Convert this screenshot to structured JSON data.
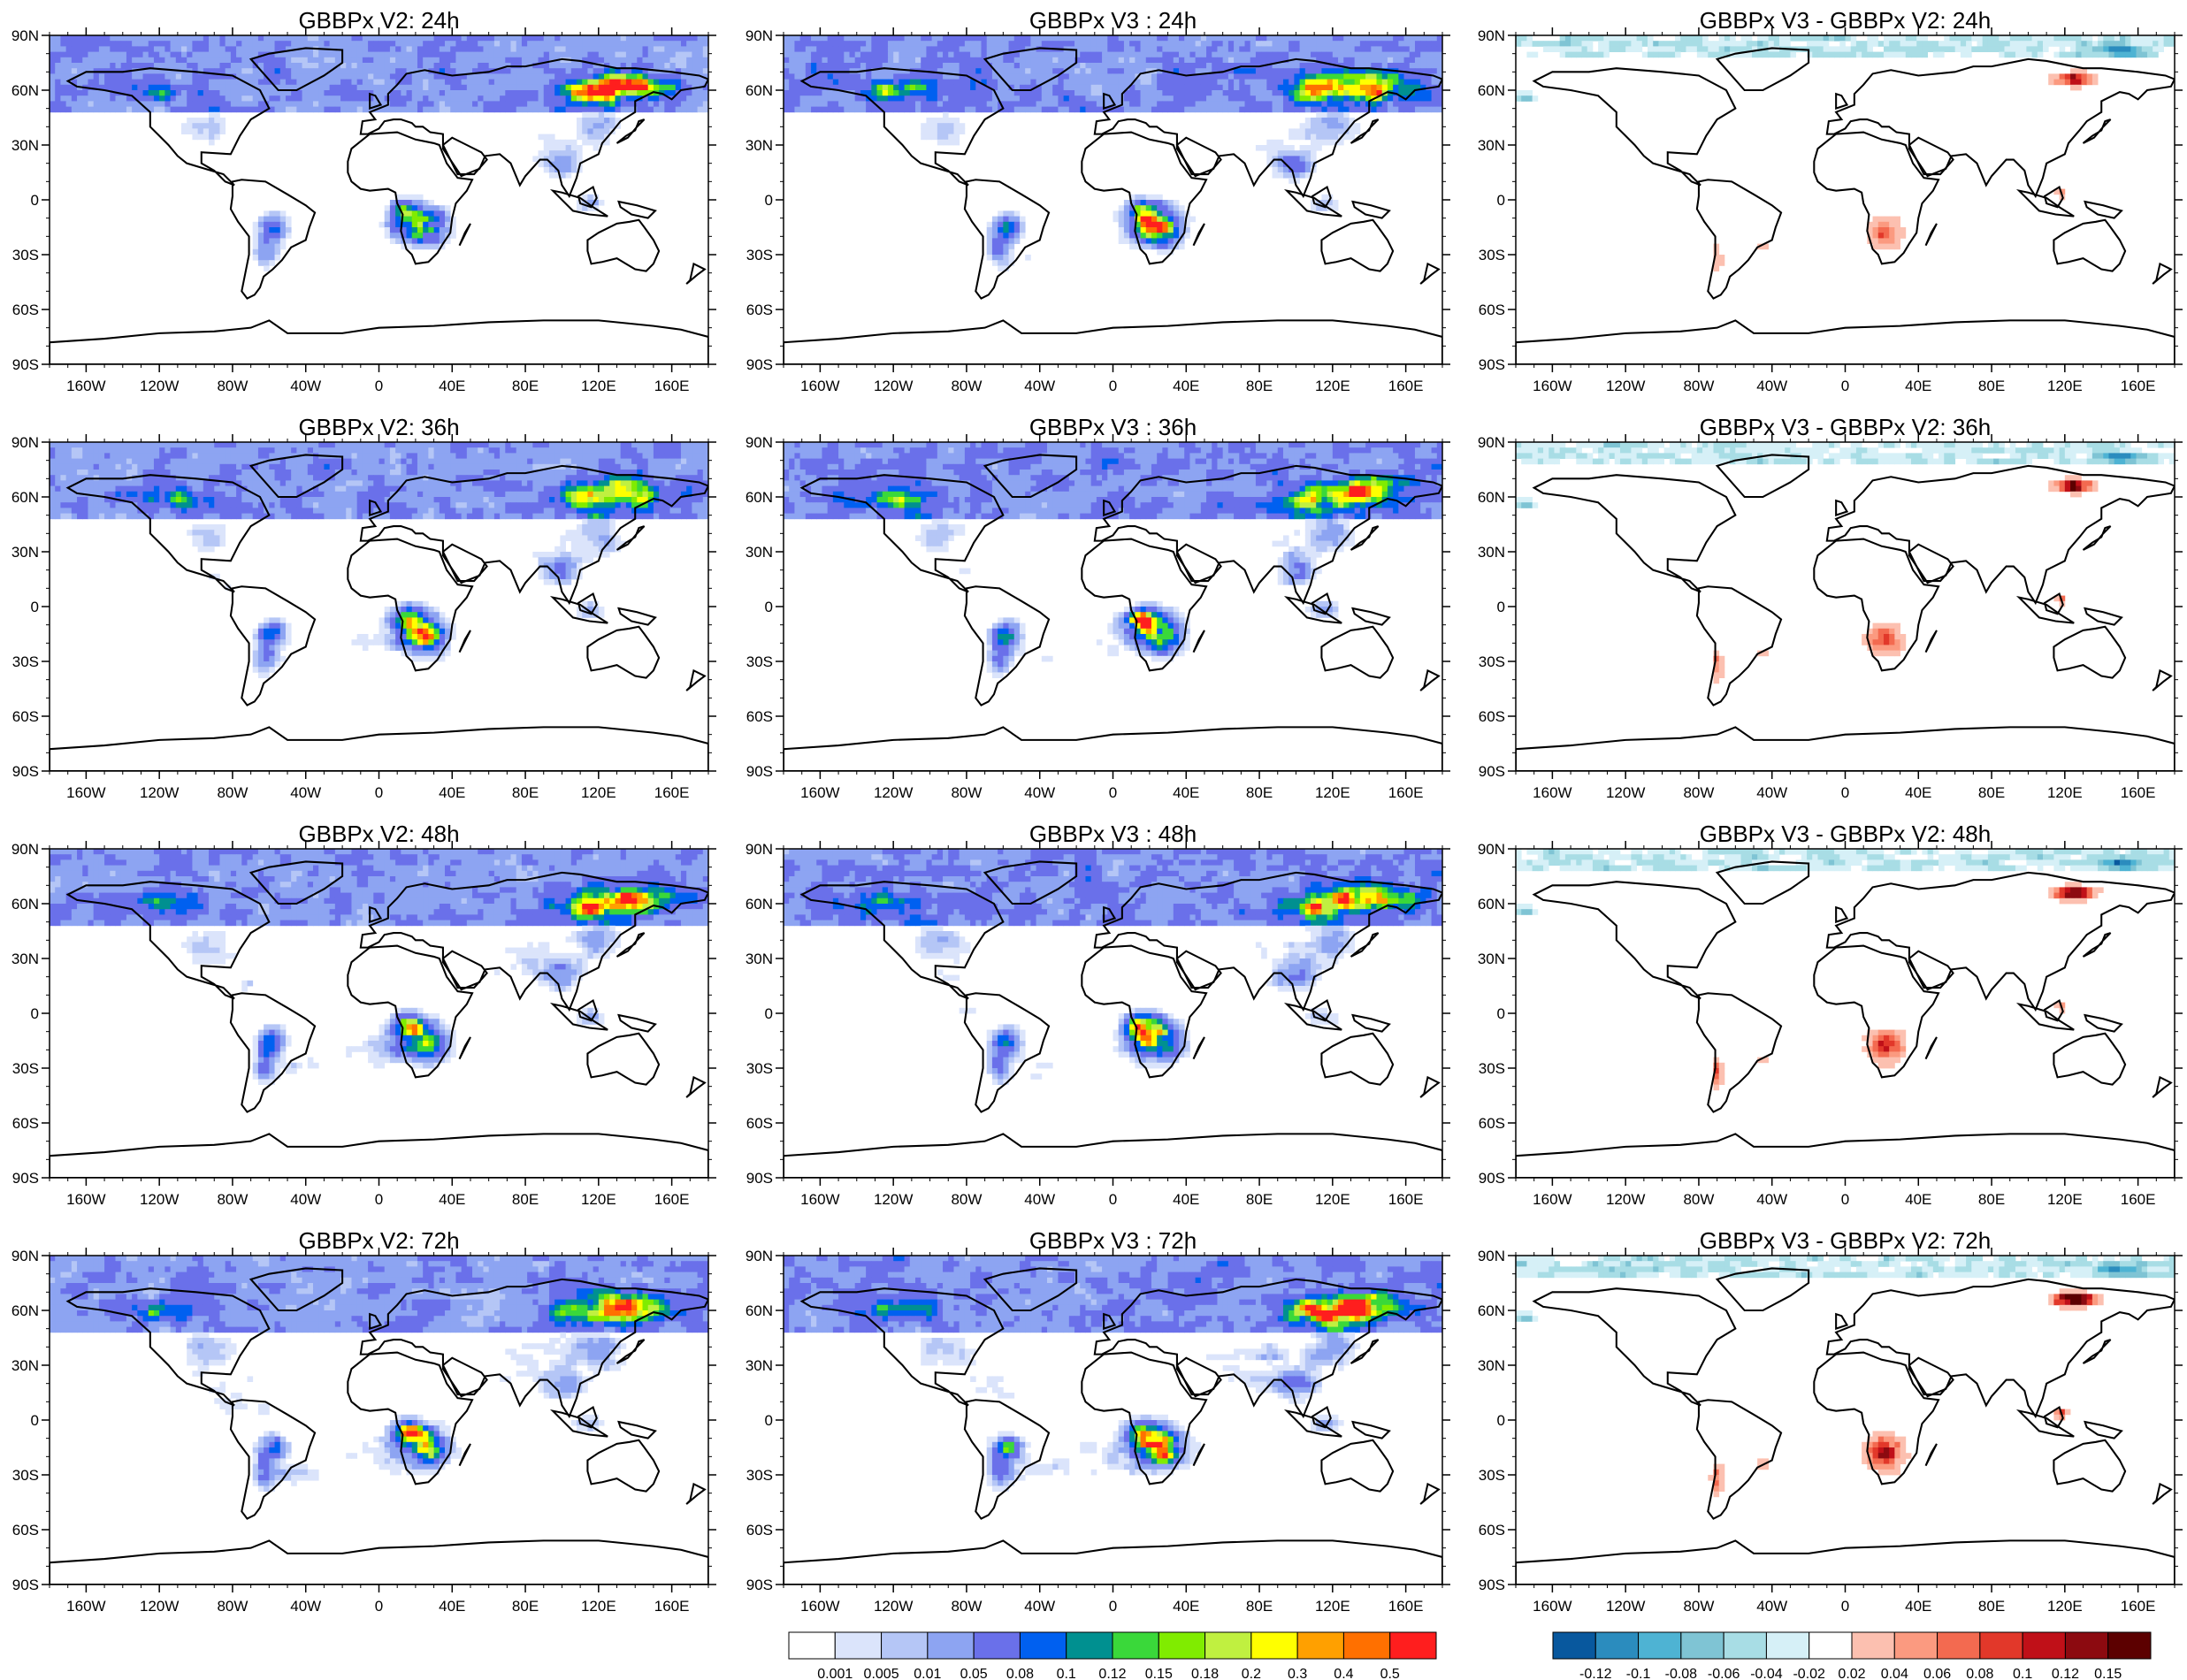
{
  "panels": [
    {
      "title": "GBBPx V2: 24h",
      "kind": "abs",
      "hour": 24
    },
    {
      "title": "GBBPx V3 : 24h",
      "kind": "abs",
      "hour": 24
    },
    {
      "title": "GBBPx V3 - GBBPx V2: 24h",
      "kind": "diff",
      "hour": 24
    },
    {
      "title": "GBBPx V2: 36h",
      "kind": "abs",
      "hour": 36
    },
    {
      "title": "GBBPx V3 : 36h",
      "kind": "abs",
      "hour": 36
    },
    {
      "title": "GBBPx V3 - GBBPx V2: 36h",
      "kind": "diff",
      "hour": 36
    },
    {
      "title": "GBBPx V2: 48h",
      "kind": "abs",
      "hour": 48
    },
    {
      "title": "GBBPx V3 : 48h",
      "kind": "abs",
      "hour": 48
    },
    {
      "title": "GBBPx V3 - GBBPx V2: 48h",
      "kind": "diff",
      "hour": 48
    },
    {
      "title": "GBBPx V2: 72h",
      "kind": "abs",
      "hour": 72
    },
    {
      "title": "GBBPx V3 : 72h",
      "kind": "abs",
      "hour": 72
    },
    {
      "title": "GBBPx V3 - GBBPx V2: 72h",
      "kind": "diff",
      "hour": 72
    }
  ],
  "lat_ticks": [
    "90N",
    "60N",
    "30N",
    "0",
    "30S",
    "60S",
    "90S"
  ],
  "lon_ticks": [
    "160W",
    "120W",
    "80W",
    "40W",
    "0",
    "40E",
    "80E",
    "120E",
    "160E"
  ],
  "abs_colorbar": {
    "colors": [
      "#ffffff",
      "#dbe4fb",
      "#b5c6f6",
      "#8da4f2",
      "#6a70ea",
      "#0060f0",
      "#009090",
      "#3ad83a",
      "#80ec00",
      "#c0f040",
      "#ffff00",
      "#ffa000",
      "#ff7000",
      "#ff1e1e"
    ],
    "labels": [
      "0.001",
      "0.005",
      "0.01",
      "0.05",
      "0.08",
      "0.1",
      "0.12",
      "0.15",
      "0.18",
      "0.2",
      "0.3",
      "0.4",
      "0.5"
    ]
  },
  "diff_colorbar": {
    "colors": [
      "#08589e",
      "#2b8cbe",
      "#4eb3d3",
      "#7fc4d4",
      "#a8dde5",
      "#d6f0f7",
      "#ffffff",
      "#fcc0b0",
      "#fb9a80",
      "#f36a50",
      "#e2382a",
      "#c01018",
      "#8c0a10",
      "#5c0000"
    ],
    "labels": [
      "-0.12",
      "-0.1",
      "-0.08",
      "-0.06",
      "-0.04",
      "-0.02",
      "0.02",
      "0.04",
      "0.06",
      "0.08",
      "0.1",
      "0.12",
      "0.15"
    ]
  }
}
